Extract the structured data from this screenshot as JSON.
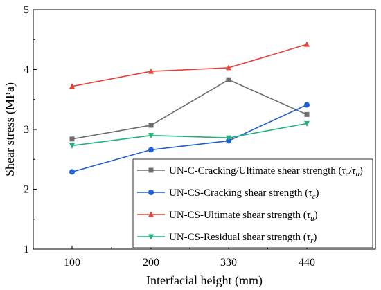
{
  "chart_data": {
    "type": "line",
    "xlabel": "Interfacial height (mm)",
    "ylabel": "Shear stress (MPa)",
    "categories": [
      "100",
      "200",
      "330",
      "440"
    ],
    "ylim": [
      1,
      5
    ],
    "yticks": [
      "1",
      "2",
      "3",
      "4",
      "5"
    ],
    "grid": false,
    "legend_position": "bottom-right",
    "series": [
      {
        "name_main": "UN-C-Cracking/Ultimate shear strength (",
        "name_sym": "τ",
        "name_sub": "c",
        "name_mid": "/",
        "name_sym2": "τ",
        "name_sub2": "u",
        "name_end": ")",
        "color": "#6d6d6d",
        "marker": "square",
        "values": [
          2.84,
          3.07,
          3.83,
          3.25
        ]
      },
      {
        "name_main": "UN-CS-Cracking shear strength (",
        "name_sym": "τ",
        "name_sub": "c",
        "name_end": ")",
        "color": "#1f5fd0",
        "marker": "circle",
        "values": [
          2.29,
          2.66,
          2.81,
          3.41
        ]
      },
      {
        "name_main": "UN-CS-Ultimate shear strength (",
        "name_sym": "τ",
        "name_sub": "u",
        "name_end": ")",
        "color": "#e8403a",
        "marker": "triangle-up",
        "values": [
          3.72,
          3.97,
          4.03,
          4.42
        ]
      },
      {
        "name_main": "UN-CS-Residual  shear strength (",
        "name_sym": "τ",
        "name_sub": "r",
        "name_end": ")",
        "color": "#1fb37a",
        "marker": "triangle-down",
        "values": [
          2.73,
          2.9,
          2.86,
          3.1
        ]
      }
    ]
  }
}
